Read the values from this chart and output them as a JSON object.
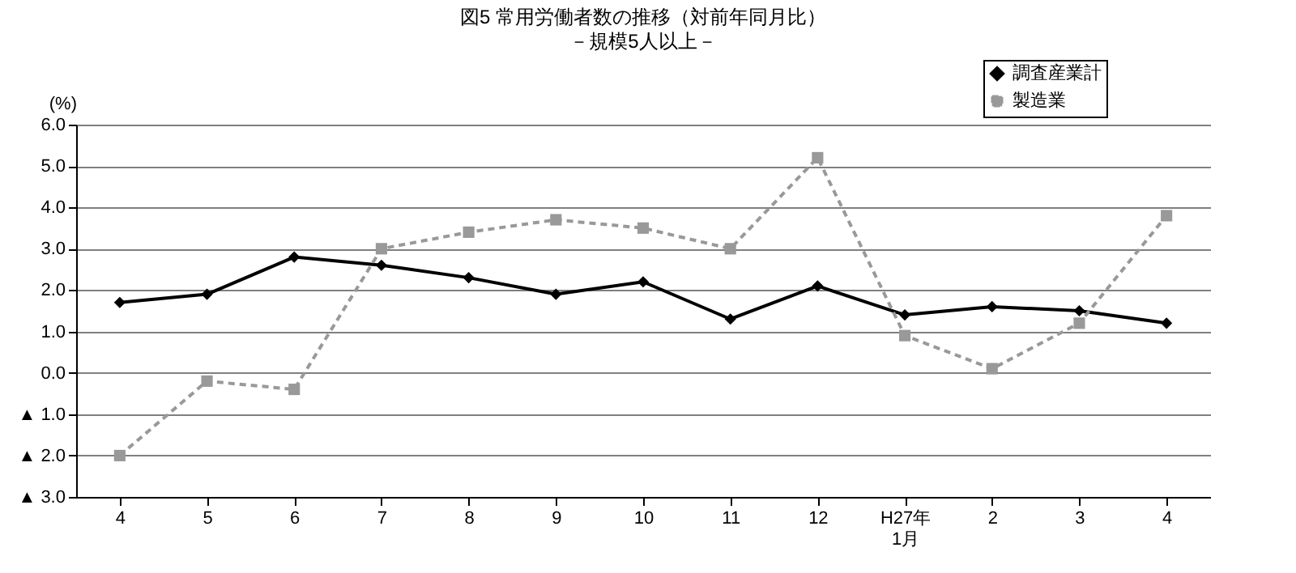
{
  "chart_data": {
    "type": "line",
    "title": "図5 常用労働者数の推移（対前年同月比）",
    "subtitle": "－規模5人以上－",
    "ylabel": "(%)",
    "categories": [
      "4",
      "5",
      "6",
      "7",
      "8",
      "9",
      "10",
      "11",
      "12",
      "H27年\n1月",
      "2",
      "3",
      "4"
    ],
    "series": [
      {
        "name": "調査産業計",
        "color": "#000000",
        "marker": "diamond",
        "line_style": "solid",
        "values": [
          1.7,
          1.9,
          2.8,
          2.6,
          2.3,
          1.9,
          2.2,
          1.3,
          2.1,
          1.4,
          1.6,
          1.5,
          1.2
        ]
      },
      {
        "name": "製造業",
        "color": "#999999",
        "marker": "square",
        "line_style": "dashed",
        "values": [
          -2.0,
          -0.2,
          -0.4,
          3.0,
          3.4,
          3.7,
          3.5,
          3.0,
          5.2,
          0.9,
          0.1,
          1.2,
          3.8
        ]
      }
    ],
    "ylim": [
      -3,
      6
    ],
    "yticks": [
      {
        "value": 6,
        "label": "6.0"
      },
      {
        "value": 5,
        "label": "5.0"
      },
      {
        "value": 4,
        "label": "4.0"
      },
      {
        "value": 3,
        "label": "3.0"
      },
      {
        "value": 2,
        "label": "2.0"
      },
      {
        "value": 1,
        "label": "1.0"
      },
      {
        "value": 0,
        "label": "0.0"
      },
      {
        "value": -1,
        "label": "▲ 1.0"
      },
      {
        "value": -2,
        "label": "▲ 2.0"
      },
      {
        "value": -3,
        "label": "▲ 3.0"
      }
    ],
    "grid": "y",
    "legend": "top right"
  }
}
